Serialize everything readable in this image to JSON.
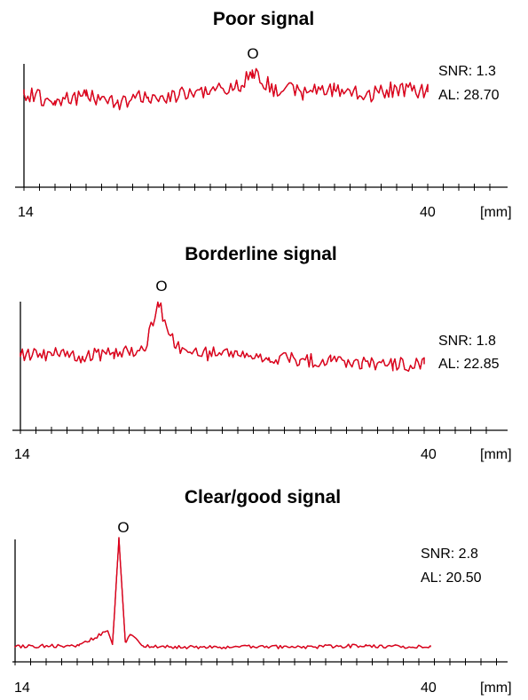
{
  "panels": [
    {
      "title": "Poor signal",
      "peak_marker": "O",
      "snr_text": "SNR: 1.3",
      "al_text": "AL: 28.70",
      "x_start_label": "14",
      "x_end_label": "40",
      "unit_label": "[mm]"
    },
    {
      "title": "Borderline signal",
      "peak_marker": "O",
      "snr_text": "SNR: 1.8",
      "al_text": "AL: 22.85",
      "x_start_label": "14",
      "x_end_label": "40",
      "unit_label": "[mm]"
    },
    {
      "title": "Clear/good signal",
      "peak_marker": "O",
      "snr_text": "SNR: 2.8",
      "al_text": "AL: 20.50",
      "x_start_label": "14",
      "x_end_label": "40",
      "unit_label": "[mm]"
    }
  ],
  "colors": {
    "trace": "#e0001b",
    "trace_outline": "#2a0000",
    "axis": "#000000"
  },
  "chart_data": [
    {
      "type": "line",
      "title": "Poor signal",
      "x_unit": "mm",
      "x_tick_labels": [
        "14",
        "40"
      ],
      "peak_position_mm": 28.7,
      "annotations": [
        "O",
        "SNR: 1.3",
        "AL: 28.70"
      ],
      "series": [
        {
          "x": [
            14,
            16,
            18,
            20,
            22,
            24,
            26,
            28,
            28.7,
            30,
            32,
            34,
            36,
            38,
            40
          ],
          "y": [
            0.76,
            0.7,
            0.74,
            0.69,
            0.73,
            0.75,
            0.78,
            0.82,
            0.95,
            0.8,
            0.77,
            0.79,
            0.74,
            0.8,
            0.77
          ]
        }
      ]
    },
    {
      "type": "line",
      "title": "Borderline signal",
      "x_unit": "mm",
      "x_tick_labels": [
        "14",
        "40"
      ],
      "peak_position_mm": 22.85,
      "annotations": [
        "O",
        "SNR: 1.8",
        "AL: 22.85"
      ],
      "series": [
        {
          "x": [
            14,
            16,
            18,
            20,
            22,
            22.85,
            24,
            26,
            28,
            30,
            32,
            34,
            36,
            38,
            40
          ],
          "y": [
            0.56,
            0.58,
            0.56,
            0.59,
            0.6,
            0.97,
            0.62,
            0.58,
            0.57,
            0.55,
            0.53,
            0.52,
            0.51,
            0.5,
            0.5
          ]
        }
      ]
    },
    {
      "type": "line",
      "title": "Clear/good signal",
      "x_unit": "mm",
      "x_tick_labels": [
        "14",
        "40"
      ],
      "peak_position_mm": 20.5,
      "annotations": [
        "O",
        "SNR: 2.8",
        "AL: 20.50"
      ],
      "series": [
        {
          "x": [
            14,
            16,
            18,
            19.8,
            20.1,
            20.5,
            20.9,
            21.2,
            22,
            24,
            28,
            32,
            36,
            40
          ],
          "y": [
            0.12,
            0.13,
            0.13,
            0.25,
            0.14,
            1.0,
            0.16,
            0.22,
            0.13,
            0.12,
            0.12,
            0.12,
            0.13,
            0.12
          ]
        }
      ]
    }
  ]
}
